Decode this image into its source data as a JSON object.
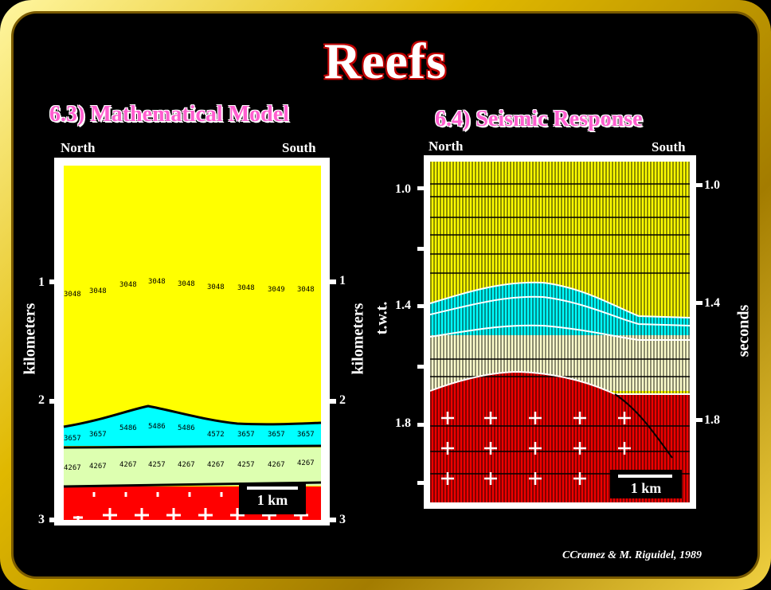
{
  "title": "Reefs",
  "left_panel": {
    "heading": "6.3) Mathematical Model",
    "north": "North",
    "south": "South",
    "axis_label_left": "kilometers",
    "axis_label_right": "kilometers",
    "ticks": [
      "1",
      "2",
      "3"
    ],
    "velocities_row1": [
      "3048",
      "3048",
      "3048",
      "3048",
      "3048",
      "3048",
      "3048",
      "3049",
      "3048"
    ],
    "velocities_row2": [
      "3657",
      "3657",
      "5486",
      "5486",
      "5486",
      "4572",
      "3657",
      "3657",
      "3657"
    ],
    "velocities_row3": [
      "4267",
      "4267",
      "4267",
      "4257",
      "4267",
      "4267",
      "4257",
      "4267",
      "4267"
    ],
    "scale_label": "1 km",
    "colors": {
      "upper": "#ffff00",
      "reef": "#00ffff",
      "lower": "#ddffb0",
      "base": "#ff0000"
    }
  },
  "right_panel": {
    "heading": "6.4) Seismic Response",
    "north": "North",
    "south": "South",
    "axis_label_left": "t.w.t.",
    "axis_label_right": "seconds",
    "ticks_left": [
      "1.0",
      "1.4",
      "1.8"
    ],
    "ticks_right": [
      "1.0",
      "1.4",
      "1.8"
    ],
    "scale_label": "1 km"
  },
  "credit": "CCramez & M. Riguidel, 1989"
}
